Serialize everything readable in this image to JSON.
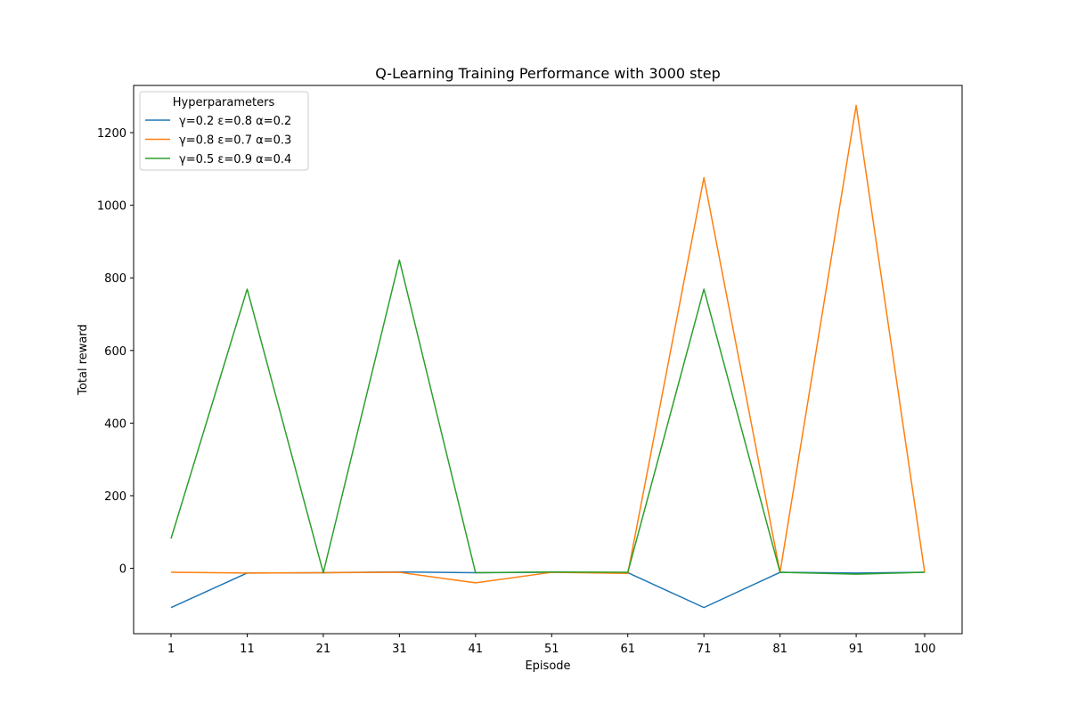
{
  "chart_data": {
    "type": "line",
    "title": "Q-Learning Training Performance with 3000 step",
    "xlabel": "Episode",
    "ylabel": "Total reward",
    "x": [
      1,
      11,
      21,
      31,
      41,
      51,
      61,
      71,
      81,
      91,
      100
    ],
    "x_tick_labels": [
      "1",
      "11",
      "21",
      "31",
      "41",
      "51",
      "61",
      "71",
      "81",
      "91",
      "100"
    ],
    "y_ticks": [
      0,
      200,
      400,
      600,
      800,
      1000,
      1200
    ],
    "y_tick_labels": [
      "0",
      "200",
      "400",
      "600",
      "800",
      "1000",
      "1200"
    ],
    "ylim": [
      -180,
      1330
    ],
    "grid": false,
    "legend": {
      "title": "Hyperparameters",
      "placement": "top-left"
    },
    "series": [
      {
        "name": "γ=0.2 ε=0.8 α=0.2",
        "color": "#1f77b4",
        "values": [
          -108,
          -13,
          -12,
          -10,
          -12,
          -11,
          -12,
          -108,
          -11,
          -13,
          -11
        ]
      },
      {
        "name": "γ=0.8 ε=0.7 α=0.3",
        "color": "#ff7f0e",
        "values": [
          -11,
          -13,
          -12,
          -11,
          -40,
          -11,
          -14,
          1076,
          -11,
          1275,
          -11
        ]
      },
      {
        "name": "γ=0.5 ε=0.9 α=0.4",
        "color": "#2ca02c",
        "values": [
          82,
          769,
          -12,
          849,
          -12,
          -10,
          -11,
          769,
          -11,
          -16,
          -11
        ]
      }
    ]
  }
}
